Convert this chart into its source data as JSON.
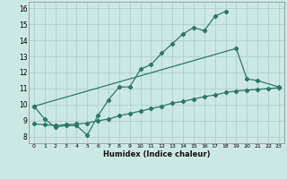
{
  "xlabel": "Humidex (Indice chaleur)",
  "bg_color": "#cce8e4",
  "grid_color": "#b0d0cc",
  "line_color": "#2d7868",
  "xlim": [
    -0.5,
    23.5
  ],
  "ylim": [
    7.6,
    16.4
  ],
  "xtick_vals": [
    0,
    1,
    2,
    3,
    4,
    5,
    6,
    7,
    8,
    9,
    10,
    11,
    12,
    13,
    14,
    15,
    16,
    17,
    18,
    19,
    20,
    21,
    22,
    23
  ],
  "ytick_vals": [
    8,
    9,
    10,
    11,
    12,
    13,
    14,
    15,
    16
  ],
  "line1_x": [
    0,
    1,
    2,
    3,
    4,
    5,
    6,
    7,
    8,
    9,
    10,
    11,
    12,
    13,
    14,
    15,
    16,
    17,
    18
  ],
  "line1_y": [
    9.9,
    9.1,
    8.6,
    8.7,
    8.7,
    8.1,
    9.3,
    10.3,
    11.1,
    11.1,
    12.2,
    12.5,
    13.2,
    13.8,
    14.4,
    14.8,
    14.6,
    15.5,
    15.8
  ],
  "line2_x": [
    0,
    19,
    20,
    21,
    23
  ],
  "line2_y": [
    9.9,
    13.5,
    11.6,
    11.5,
    11.1
  ],
  "line3_x": [
    0,
    1,
    2,
    3,
    4,
    5,
    6,
    7,
    8,
    9,
    10,
    11,
    12,
    13,
    14,
    15,
    16,
    17,
    18,
    19,
    20,
    21,
    22,
    23
  ],
  "line3_y": [
    8.8,
    8.75,
    8.7,
    8.75,
    8.8,
    8.85,
    9.0,
    9.1,
    9.3,
    9.45,
    9.6,
    9.75,
    9.9,
    10.1,
    10.2,
    10.35,
    10.5,
    10.6,
    10.75,
    10.85,
    10.9,
    10.95,
    11.0,
    11.05
  ]
}
